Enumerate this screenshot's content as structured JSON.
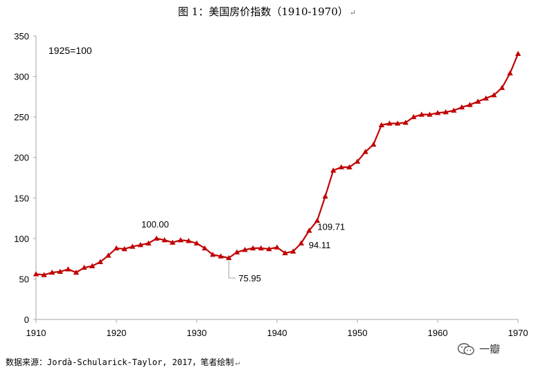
{
  "title": "图 1：美国房价指数（1910-1970）",
  "paragraph_mark": "↵",
  "source": "数据来源：Jordà-Schularick-Taylor, 2017，笔者绘制",
  "watermark_text": "一瓣",
  "watermark_icon": "wechat-icon",
  "chart_data": {
    "type": "line",
    "title": "图 1：美国房价指数（1910-1970）",
    "xlabel": "",
    "ylabel": "",
    "xlim": [
      1910,
      1970
    ],
    "ylim": [
      0,
      350
    ],
    "x_ticks": [
      1910,
      1920,
      1930,
      1940,
      1950,
      1960,
      1970
    ],
    "y_ticks": [
      0,
      50,
      100,
      150,
      200,
      250,
      300,
      350
    ],
    "grid": false,
    "legend": "none",
    "base_note": "1925=100",
    "color": "#C00000",
    "marker": "triangle",
    "series": [
      {
        "x": [
          1910,
          1911,
          1912,
          1913,
          1914,
          1915,
          1916,
          1917,
          1918,
          1919,
          1920,
          1921,
          1922,
          1923,
          1924,
          1925,
          1926,
          1927,
          1928,
          1929,
          1930,
          1931,
          1932,
          1933,
          1934,
          1935,
          1936,
          1937,
          1938,
          1939,
          1940,
          1941,
          1942,
          1943,
          1944,
          1945,
          1946,
          1947,
          1948,
          1949,
          1950,
          1951,
          1952,
          1953,
          1954,
          1955,
          1956,
          1957,
          1958,
          1959,
          1960,
          1961,
          1962,
          1963,
          1964,
          1965,
          1966,
          1967,
          1968,
          1969,
          1970
        ],
        "values": [
          56,
          55,
          58,
          59,
          62,
          58,
          64,
          66,
          71,
          79,
          88,
          87,
          90,
          92,
          94,
          100.0,
          98,
          95,
          98,
          97,
          94,
          88,
          80,
          78,
          75.95,
          83,
          86,
          88,
          88,
          87,
          89,
          82,
          84,
          94.11,
          109.71,
          122,
          152,
          184,
          188,
          188,
          195,
          207,
          216,
          240,
          242,
          242,
          243,
          250,
          253,
          253,
          255,
          256,
          258,
          262,
          265,
          269,
          273,
          277,
          286,
          304,
          328
        ]
      }
    ],
    "annotations": [
      {
        "x": 1925,
        "y": 100.0,
        "text": "100.00"
      },
      {
        "x": 1934,
        "y": 75.95,
        "text": "75.95"
      },
      {
        "x": 1943,
        "y": 94.11,
        "text": "94.11"
      },
      {
        "x": 1944,
        "y": 109.71,
        "text": "109.71"
      }
    ]
  }
}
